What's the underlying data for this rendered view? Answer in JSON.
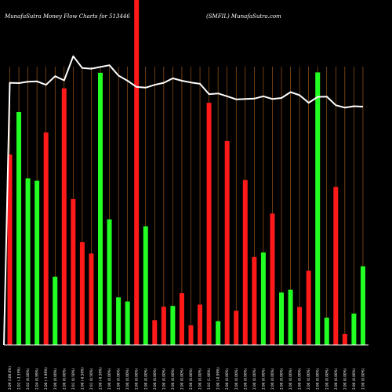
{
  "chart_data": {
    "type": "bar",
    "title": "MunafaSutra  Money Flow  Charts for 513446",
    "subtitle": "(SMFIL) MunafaSutra.com",
    "colors": {
      "background": "#000000",
      "up": "#22ff22",
      "down": "#ff1a1a",
      "line": "#ffffff",
      "grid": "#b5651d"
    },
    "ylim": [
      0,
      100
    ],
    "bars": [
      {
        "label": "2.09 (100.0%)",
        "value": 55.2,
        "color": "down"
      },
      {
        "label": "2.02 (-3.35%)",
        "value": 67.5,
        "color": "up"
      },
      {
        "label": "2.02 (0.00%)",
        "value": 48.3,
        "color": "up"
      },
      {
        "label": "2.04 (0.99%)",
        "value": 47.6,
        "color": "up"
      },
      {
        "label": "2.00 (-1.96%)",
        "value": 61.6,
        "color": "down"
      },
      {
        "label": "2.00 (0.00%)",
        "value": 19.8,
        "color": "up"
      },
      {
        "label": "2.00 (0.00%)",
        "value": 74.4,
        "color": "down"
      },
      {
        "label": "2.01 (0.50%)",
        "value": 42.3,
        "color": "down"
      },
      {
        "label": "2.00 (-0.50%)",
        "value": 29.8,
        "color": "down"
      },
      {
        "label": "2.01 (0.50%)",
        "value": 26.5,
        "color": "down"
      },
      {
        "label": "2.00 (-0.50%)",
        "value": 78.9,
        "color": "up"
      },
      {
        "label": "2.00 (0.00%)",
        "value": 36.4,
        "color": "up"
      },
      {
        "label": "2.00 (0.00%)",
        "value": 13.8,
        "color": "up"
      },
      {
        "label": "2.00 (0.00%)",
        "value": 12.6,
        "color": "up"
      },
      {
        "label": "2.00 (0.00%)",
        "value": 100,
        "color": "down"
      },
      {
        "label": "2.00 (0.00%)",
        "value": 34.4,
        "color": "up"
      },
      {
        "label": "2.00 (0.00%)",
        "value": 7.2,
        "color": "down"
      },
      {
        "label": "2.00 (0.00%)",
        "value": 11.1,
        "color": "down"
      },
      {
        "label": "2.00 (0.00%)",
        "value": 11.3,
        "color": "up"
      },
      {
        "label": "2.00 (0.00%)",
        "value": 15.0,
        "color": "down"
      },
      {
        "label": "2.00 (0.00%)",
        "value": 5.7,
        "color": "down"
      },
      {
        "label": "2.00 (0.00%)",
        "value": 11.7,
        "color": "down"
      },
      {
        "label": "2.02 (1.00%)",
        "value": 70.2,
        "color": "down"
      },
      {
        "label": "2.00 (-0.99%)",
        "value": 6.9,
        "color": "up"
      },
      {
        "label": "2.00 (0.00%)",
        "value": 59.1,
        "color": "down"
      },
      {
        "label": "2.00 (0.00%)",
        "value": 9.9,
        "color": "down"
      },
      {
        "label": "2.00 (0.00%)",
        "value": 47.8,
        "color": "down"
      },
      {
        "label": "2.00 (0.00%)",
        "value": 25.5,
        "color": "down"
      },
      {
        "label": "2.00 (0.00%)",
        "value": 26.8,
        "color": "up"
      },
      {
        "label": "2.00 (0.00%)",
        "value": 38.1,
        "color": "down"
      },
      {
        "label": "2.00 (0.00%)",
        "value": 15.2,
        "color": "up"
      },
      {
        "label": "2.00 (0.00%)",
        "value": 16.0,
        "color": "up"
      },
      {
        "label": "2.00 (0.00%)",
        "value": 11.0,
        "color": "down"
      },
      {
        "label": "2.00 (0.00%)",
        "value": 21.5,
        "color": "down"
      },
      {
        "label": "2.00 (0.00%)",
        "value": 79.0,
        "color": "up"
      },
      {
        "label": "2.00 (0.00%)",
        "value": 7.9,
        "color": "up"
      },
      {
        "label": "2.00 (0.00%)",
        "value": 45.8,
        "color": "down"
      },
      {
        "label": "2.00 (0.00%)",
        "value": 3.2,
        "color": "down"
      },
      {
        "label": "2.00 (0.00%)",
        "value": 9.1,
        "color": "up"
      },
      {
        "label": "2.00 (0.00%)",
        "value": 22.8,
        "color": "up"
      }
    ],
    "line": {
      "name": "",
      "values": [
        76,
        75.9,
        76.3,
        76.4,
        75.4,
        77.9,
        76.7,
        83.7,
        80.3,
        80.1,
        80.6,
        81.1,
        78.1,
        76.6,
        74.8,
        74.6,
        75.4,
        76.0,
        77.3,
        76.6,
        76.1,
        75.7,
        72.7,
        72.9,
        72.1,
        71.2,
        71.3,
        71.4,
        72.1,
        71.3,
        71.6,
        73.3,
        72.4,
        70.2,
        71.9,
        72.0,
        69.5,
        68.8,
        69.2,
        69.1
      ]
    }
  }
}
